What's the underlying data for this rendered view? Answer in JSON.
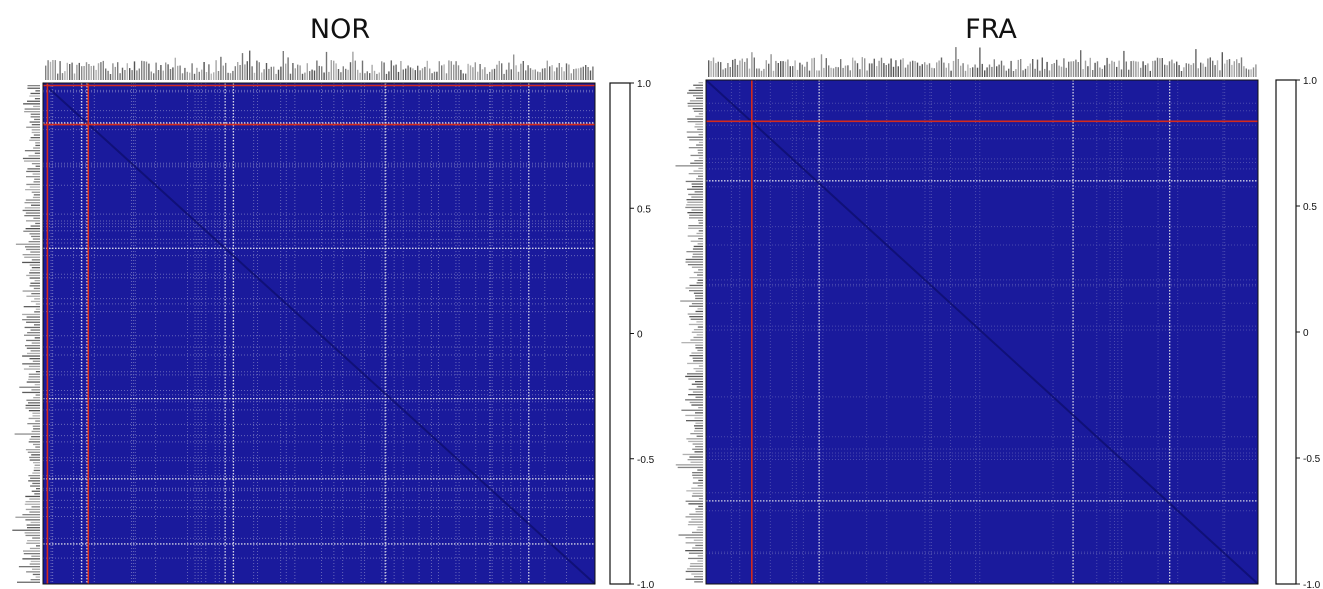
{
  "colors": {
    "base": "#1a1a9c",
    "line_white": "#f2f2f2",
    "line_red": "#d42a1c",
    "colorbar_fill": "#ffffff",
    "frame": "#111111"
  },
  "chart_data": [
    {
      "type": "heatmap",
      "title": "NOR",
      "matrix_description": "large correlation matrix of gene labels; dark blue background with sparse light grid lines and red lines",
      "colorbar": {
        "min": -1.0,
        "max": 1.0,
        "ticks": [
          "1.0",
          "0.5",
          "0",
          "-0.5",
          "-1.0"
        ]
      }
    },
    {
      "type": "heatmap",
      "title": "FRA",
      "matrix_description": "large correlation matrix of gene labels; dark blue background with sparse light grid lines and red lines",
      "colorbar": {
        "min": -1.0,
        "max": 1.0,
        "ticks": [
          "1.0",
          "0.5",
          "0",
          "-0.5",
          "-1.0"
        ]
      }
    }
  ]
}
